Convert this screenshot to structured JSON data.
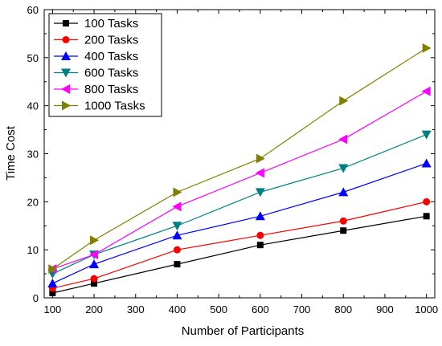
{
  "chart_data": {
    "type": "line",
    "title": "",
    "xlabel": "Number of Participants",
    "ylabel": "Time Cost",
    "x": [
      100,
      200,
      400,
      600,
      800,
      1000
    ],
    "xlim": [
      80,
      1020
    ],
    "ylim": [
      0,
      60
    ],
    "xticks": [
      100,
      200,
      300,
      400,
      500,
      600,
      700,
      800,
      900,
      1000
    ],
    "yticks": [
      0,
      10,
      20,
      30,
      40,
      50,
      60
    ],
    "grid": false,
    "legend_position": "top-left",
    "series": [
      {
        "name": "100 Tasks",
        "color": "#000000",
        "marker": "square",
        "values": [
          1,
          3,
          7,
          11,
          14,
          17
        ]
      },
      {
        "name": "200 Tasks",
        "color": "#ff0000",
        "marker": "circle",
        "values": [
          2,
          4,
          10,
          13,
          16,
          20
        ]
      },
      {
        "name": "400 Tasks",
        "color": "#0000ff",
        "marker": "triangle-up",
        "values": [
          3,
          7,
          13,
          17,
          22,
          28
        ]
      },
      {
        "name": "600 Tasks",
        "color": "#008080",
        "marker": "triangle-down",
        "values": [
          5,
          9,
          15,
          22,
          27,
          34
        ]
      },
      {
        "name": "800 Tasks",
        "color": "#ff00ff",
        "marker": "triangle-left",
        "values": [
          6,
          9,
          19,
          26,
          33,
          43
        ]
      },
      {
        "name": "1000 Tasks",
        "color": "#808000",
        "marker": "triangle-right",
        "values": [
          6,
          12,
          22,
          29,
          41,
          52
        ]
      }
    ]
  }
}
